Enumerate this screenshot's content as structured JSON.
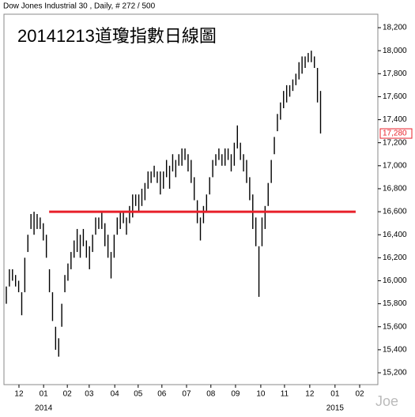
{
  "chart_data": {
    "type": "hilo",
    "header": "Dow Jones Industrial 30 , Daily, # 272 / 500",
    "title": "20141213道瓊指數日線圖",
    "watermark": "Joe",
    "color": "#000000",
    "series": [
      {
        "high": [
          15950,
          16100,
          16100,
          16050,
          16000,
          15900,
          16200,
          16400,
          16580,
          16600,
          16580,
          16550,
          16500,
          16400,
          16100,
          15900,
          15600,
          15500,
          15800,
          16050,
          16150,
          16250,
          16350,
          16450,
          16400,
          16450,
          16350,
          16300,
          16400,
          16550,
          16550,
          16600,
          16500,
          16400,
          16250,
          16400,
          16550,
          16600,
          16600,
          16550,
          16650,
          16750,
          16750,
          16750,
          16800,
          16850,
          16950,
          16950,
          17000,
          16950,
          16950,
          16950,
          17050,
          17000,
          17100,
          17050,
          17100,
          17150,
          17150,
          17100,
          17050,
          16900,
          16700,
          16550,
          16650,
          16750,
          16900,
          17050,
          17100,
          17150,
          17100,
          17150,
          17150,
          17100,
          17200,
          17350,
          17200,
          17100,
          17050,
          16900,
          16750,
          16550,
          16300,
          16550,
          16650,
          16850,
          17050,
          17250,
          17450,
          17550,
          17650,
          17700,
          17700,
          17750,
          17800,
          17900,
          17950,
          17950,
          17980,
          18000,
          17950,
          17850,
          17650
        ],
        "low": [
          15800,
          15950,
          16000,
          15950,
          15900,
          15700,
          15900,
          16250,
          16450,
          16400,
          16450,
          16450,
          16350,
          16200,
          15900,
          15650,
          15400,
          15340,
          15600,
          15900,
          16000,
          16100,
          16200,
          16250,
          16200,
          16300,
          16200,
          16100,
          16250,
          16400,
          16450,
          16450,
          16300,
          16200,
          16020,
          16200,
          16400,
          16450,
          16500,
          16400,
          16500,
          16550,
          16650,
          16600,
          16650,
          16700,
          16800,
          16850,
          16900,
          16850,
          16750,
          16800,
          16900,
          16800,
          16950,
          16900,
          17000,
          17000,
          17050,
          16950,
          16850,
          16700,
          16500,
          16350,
          16500,
          16600,
          16750,
          16900,
          17000,
          17050,
          17000,
          17000,
          17050,
          16950,
          17000,
          17150,
          17050,
          16950,
          16850,
          16700,
          16450,
          16300,
          15860,
          16300,
          16450,
          16650,
          16850,
          17100,
          17300,
          17400,
          17500,
          17550,
          17600,
          17650,
          17700,
          17750,
          17800,
          17850,
          17900,
          17900,
          17850,
          17550,
          17280
        ]
      }
    ],
    "last": {
      "value": 17280,
      "label": "17,280",
      "color": "#e8202a"
    },
    "hline": {
      "value": 16600,
      "color": "#e8202a",
      "x": [
        13.9,
        113.4
      ]
    },
    "ylim": [
      15097,
      18317
    ],
    "yticks": [
      {
        "value": 15200,
        "label": "15,200"
      },
      {
        "value": 15400,
        "label": "15,400"
      },
      {
        "value": 15600,
        "label": "15,600"
      },
      {
        "value": 15800,
        "label": "15,800"
      },
      {
        "value": 16000,
        "label": "16,000"
      },
      {
        "value": 16200,
        "label": "16,200"
      },
      {
        "value": 16400,
        "label": "16,400"
      },
      {
        "value": 16600,
        "label": "16,600"
      },
      {
        "value": 16800,
        "label": "16,800"
      },
      {
        "value": 17000,
        "label": "17,000"
      },
      {
        "value": 17200,
        "label": "17,200"
      },
      {
        "value": 17400,
        "label": "17,400"
      },
      {
        "value": 17600,
        "label": "17,600"
      },
      {
        "value": 17800,
        "label": "17,800"
      },
      {
        "value": 18000,
        "label": "18,000"
      },
      {
        "value": 18200,
        "label": "18,200"
      }
    ],
    "xlim": [
      -0.77,
      120.6
    ],
    "xticks": [
      {
        "value": 4.1,
        "label": "12"
      },
      {
        "value": 12.1,
        "label": "01"
      },
      {
        "value": 19.8,
        "label": "02"
      },
      {
        "value": 26.9,
        "label": "03"
      },
      {
        "value": 35.2,
        "label": "04"
      },
      {
        "value": 42.8,
        "label": "05"
      },
      {
        "value": 50.5,
        "label": "06"
      },
      {
        "value": 58.5,
        "label": "07"
      },
      {
        "value": 66.4,
        "label": "08"
      },
      {
        "value": 74.4,
        "label": "09"
      },
      {
        "value": 82.6,
        "label": "10"
      },
      {
        "value": 90.3,
        "label": "11"
      },
      {
        "value": 98.5,
        "label": "12"
      },
      {
        "value": 106.7,
        "label": "01"
      },
      {
        "value": 114.7,
        "label": "02"
      }
    ],
    "year_labels": [
      {
        "value": 12.1,
        "label": "2014"
      },
      {
        "value": 106.7,
        "label": "2015"
      }
    ]
  }
}
